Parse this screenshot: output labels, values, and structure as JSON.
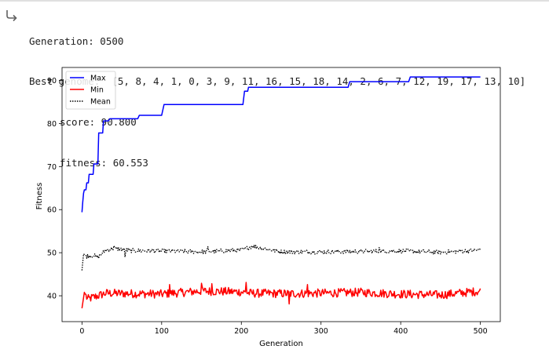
{
  "output": {
    "icon": "output-arrow-icon",
    "generation_line": "Generation: 0500",
    "genome_line": "Best genome:  [5, 8, 4, 1, 0, 3, 9, 11, 16, 15, 18, 14, 2, 6, 7, 12, 19, 17, 13, 10]",
    "score_line": "score: 90.800",
    "fitness_line": "fitness: 60.553"
  },
  "chart_data": {
    "type": "line",
    "title": "",
    "xlabel": "Generation",
    "ylabel": "Fitness",
    "xlim": [
      -25,
      525
    ],
    "ylim": [
      34,
      93
    ],
    "xticks": [
      0,
      100,
      200,
      300,
      400,
      500
    ],
    "yticks": [
      40,
      50,
      60,
      70,
      80,
      90
    ],
    "grid": false,
    "legend_placement": "top-left",
    "series": [
      {
        "name": "Max",
        "color": "#0000ff",
        "style": "solid",
        "points": [
          [
            0,
            59.4
          ],
          [
            1,
            61.8
          ],
          [
            2,
            63.8
          ],
          [
            3,
            64.6
          ],
          [
            5,
            64.6
          ],
          [
            6,
            66.2
          ],
          [
            8,
            66.2
          ],
          [
            9,
            68.2
          ],
          [
            14,
            68.2
          ],
          [
            15,
            70.6
          ],
          [
            20,
            70.6
          ],
          [
            21,
            77.8
          ],
          [
            26,
            77.8
          ],
          [
            27,
            80.6
          ],
          [
            33,
            80.6
          ],
          [
            34,
            80.8
          ],
          [
            35,
            81.1
          ],
          [
            70,
            81.1
          ],
          [
            72,
            81.9
          ],
          [
            100,
            81.9
          ],
          [
            103,
            84.4
          ],
          [
            202,
            84.4
          ],
          [
            204,
            87.5
          ],
          [
            208,
            87.5
          ],
          [
            209,
            88.4
          ],
          [
            334,
            88.4
          ],
          [
            336,
            89.7
          ],
          [
            410,
            89.7
          ],
          [
            412,
            90.8
          ],
          [
            500,
            90.8
          ]
        ]
      },
      {
        "name": "Min",
        "color": "#ff0000",
        "style": "solid",
        "anchors": [
          [
            0,
            37.1
          ],
          [
            3,
            40.8
          ],
          [
            7,
            39.2
          ],
          [
            30,
            40.6
          ],
          [
            100,
            40.4
          ],
          [
            150,
            41.1
          ],
          [
            200,
            40.9
          ],
          [
            210,
            40.6
          ],
          [
            260,
            40.5
          ],
          [
            300,
            40.6
          ],
          [
            350,
            40.8
          ],
          [
            400,
            40.4
          ],
          [
            450,
            40.2
          ],
          [
            500,
            41.1
          ]
        ],
        "noise": 1.0,
        "spikes": [
          [
            110,
            42.6
          ],
          [
            150,
            42.9
          ],
          [
            163,
            42.8
          ],
          [
            206,
            43.1
          ],
          [
            260,
            38.1
          ],
          [
            283,
            42.6
          ]
        ]
      },
      {
        "name": "Mean",
        "color": "#000000",
        "style": "dotted",
        "anchors": [
          [
            0,
            45.9
          ],
          [
            2,
            49.7
          ],
          [
            6,
            49.2
          ],
          [
            14,
            49.4
          ],
          [
            20,
            48.9
          ],
          [
            30,
            50.6
          ],
          [
            40,
            51.0
          ],
          [
            60,
            50.5
          ],
          [
            100,
            50.4
          ],
          [
            150,
            50.2
          ],
          [
            200,
            50.6
          ],
          [
            214,
            51.5
          ],
          [
            250,
            50.2
          ],
          [
            300,
            50.2
          ],
          [
            350,
            50.3
          ],
          [
            400,
            50.4
          ],
          [
            450,
            50.1
          ],
          [
            500,
            50.6
          ]
        ],
        "noise": 0.5,
        "spikes": [
          [
            40,
            51.6
          ],
          [
            54,
            49.0
          ],
          [
            158,
            51.4
          ],
          [
            214,
            51.6
          ],
          [
            373,
            51.2
          ],
          [
            500,
            51.1
          ]
        ]
      }
    ]
  }
}
